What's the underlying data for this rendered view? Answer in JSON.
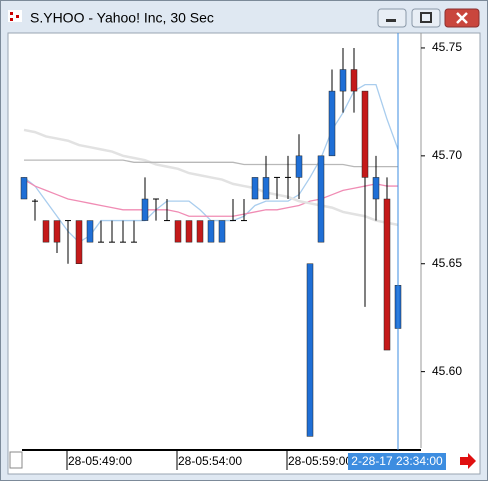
{
  "window_title": "S.YHOO - Yahoo! Inc, 30 Sec",
  "chart_data": {
    "type": "candlestick",
    "categories": [
      null,
      null,
      null,
      null,
      "28-05:49:00",
      null,
      null,
      null,
      null,
      null,
      null,
      null,
      null,
      null,
      "28-05:54:00",
      null,
      null,
      null,
      null,
      null,
      null,
      null,
      null,
      null,
      "28-05:59:00",
      null,
      null,
      null,
      null,
      null,
      null,
      null,
      null,
      null,
      null
    ],
    "open": [
      45.68,
      45.679,
      45.67,
      45.67,
      45.67,
      45.67,
      45.66,
      45.66,
      45.66,
      45.66,
      45.66,
      45.67,
      45.68,
      45.67,
      45.67,
      45.67,
      45.67,
      45.66,
      45.66,
      45.67,
      45.67,
      45.68,
      45.68,
      45.69,
      45.69,
      45.69,
      45.57,
      45.66,
      45.7,
      45.73,
      45.74,
      45.73,
      45.68,
      45.68,
      45.62
    ],
    "high": [
      45.69,
      45.68,
      45.67,
      45.67,
      45.67,
      45.67,
      45.67,
      45.67,
      45.67,
      45.67,
      45.67,
      45.69,
      45.68,
      45.68,
      45.67,
      45.67,
      45.67,
      45.67,
      45.67,
      45.68,
      45.68,
      45.69,
      45.7,
      45.69,
      45.7,
      45.71,
      45.65,
      45.7,
      45.74,
      45.75,
      45.75,
      45.73,
      45.7,
      45.69,
      45.68
    ],
    "low": [
      45.68,
      45.67,
      45.66,
      45.655,
      45.65,
      45.65,
      45.66,
      45.66,
      45.66,
      45.66,
      45.66,
      45.67,
      45.67,
      45.67,
      45.66,
      45.66,
      45.66,
      45.66,
      45.66,
      45.67,
      45.67,
      45.68,
      45.68,
      45.68,
      45.68,
      45.68,
      45.57,
      45.66,
      45.7,
      45.72,
      45.72,
      45.63,
      45.67,
      45.61,
      45.6
    ],
    "close": [
      45.69,
      45.679,
      45.66,
      45.66,
      45.67,
      45.65,
      45.67,
      45.66,
      45.66,
      45.66,
      45.66,
      45.68,
      45.68,
      45.67,
      45.66,
      45.66,
      45.66,
      45.67,
      45.67,
      45.67,
      45.67,
      45.69,
      45.69,
      45.69,
      45.69,
      45.7,
      45.65,
      45.7,
      45.73,
      45.74,
      45.73,
      45.69,
      45.69,
      45.61,
      45.64
    ],
    "up_color": "#1f6fd6",
    "down_color": "#c41a1a",
    "flat_color": "#000000",
    "overlays": [
      {
        "color": "#a9cdee",
        "values": [
          45.69,
          45.686,
          45.679,
          45.672,
          45.665,
          45.66,
          45.663,
          45.67,
          45.67,
          45.67,
          45.67,
          45.67,
          45.675,
          45.679,
          45.679,
          45.679,
          45.675,
          45.67,
          45.67,
          45.67,
          45.672,
          45.677,
          45.679,
          45.679,
          45.679,
          45.682,
          45.69,
          45.699,
          45.712,
          45.72,
          45.73,
          45.733,
          45.733,
          45.717,
          45.703
        ]
      },
      {
        "color": "#f08cb4",
        "values": [
          45.689,
          45.686,
          45.684,
          45.682,
          45.68,
          45.679,
          45.678,
          45.677,
          45.676,
          45.675,
          45.675,
          45.675,
          45.675,
          45.675,
          45.674,
          45.672,
          45.672,
          45.672,
          45.672,
          45.672,
          45.673,
          45.674,
          45.675,
          45.675,
          45.676,
          45.677,
          45.679,
          45.68,
          45.682,
          45.684,
          45.685,
          45.686,
          45.687,
          45.686,
          45.686
        ]
      },
      {
        "color": "#e2e2e2",
        "values": [
          45.712,
          45.711,
          45.709,
          45.708,
          45.707,
          45.705,
          45.704,
          45.703,
          45.702,
          45.7,
          45.699,
          45.698,
          45.696,
          45.695,
          45.694,
          45.692,
          45.691,
          45.69,
          45.689,
          45.687,
          45.686,
          45.685,
          45.683,
          45.682,
          45.681,
          45.679,
          45.678,
          45.677,
          45.676,
          45.674,
          45.673,
          45.672,
          45.67,
          45.669,
          45.668
        ]
      },
      {
        "color": "#b8b8b8",
        "values": [
          45.698,
          45.698,
          45.698,
          45.698,
          45.698,
          45.698,
          45.698,
          45.698,
          45.698,
          45.698,
          45.697,
          45.697,
          45.697,
          45.697,
          45.697,
          45.697,
          45.697,
          45.697,
          45.697,
          45.697,
          45.696,
          45.696,
          45.696,
          45.696,
          45.696,
          45.696,
          45.696,
          45.696,
          45.696,
          45.696,
          45.695,
          45.695,
          45.695,
          45.695,
          45.695
        ]
      }
    ],
    "ylim": [
      45.566,
      45.756
    ],
    "yticks": [
      {
        "value": 45.6,
        "label": "45.60"
      },
      45.65,
      {
        "value": 45.7,
        "label": "45.70"
      },
      45.75
    ],
    "crosshair_label": "2-28-17 23:34:00",
    "crosshair_color": "#3d8de0"
  }
}
